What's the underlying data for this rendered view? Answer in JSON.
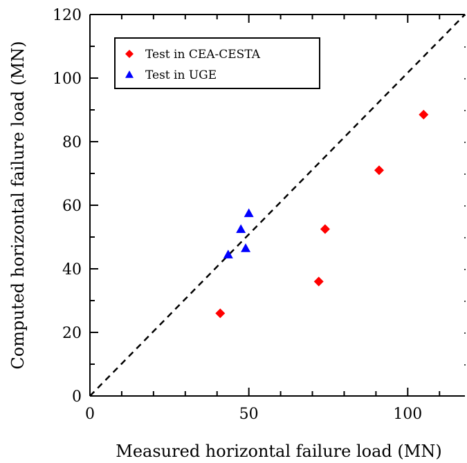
{
  "chart_data": {
    "type": "scatter",
    "xlabel": "Measured horizontal failure load (MN)",
    "ylabel": "Computed horizontal failure load (MN)",
    "xlim": [
      0,
      118
    ],
    "ylim": [
      0,
      120
    ],
    "x_ticks": [
      0,
      50,
      100
    ],
    "y_ticks": [
      0,
      20,
      40,
      60,
      80,
      100,
      120
    ],
    "x_minor_step": 10,
    "y_minor_step": 10,
    "grid": false,
    "legend_position": "top-left",
    "series": [
      {
        "name": "Test in CEA-CESTA",
        "marker": "diamond",
        "color": "#ff0000",
        "points": [
          {
            "x": 41,
            "y": 26
          },
          {
            "x": 72,
            "y": 36
          },
          {
            "x": 74,
            "y": 52.5
          },
          {
            "x": 91,
            "y": 71
          },
          {
            "x": 105,
            "y": 88.5
          }
        ]
      },
      {
        "name": "Test in UGE",
        "marker": "triangle",
        "color": "#0000ff",
        "points": [
          {
            "x": 43.5,
            "y": 44.5
          },
          {
            "x": 47.5,
            "y": 52.5
          },
          {
            "x": 49,
            "y": 46.5
          },
          {
            "x": 50,
            "y": 57.5
          }
        ]
      }
    ],
    "reference_line": {
      "style": "dashed",
      "color": "#000000",
      "from": [
        0,
        0
      ],
      "to": [
        118,
        120
      ]
    }
  }
}
